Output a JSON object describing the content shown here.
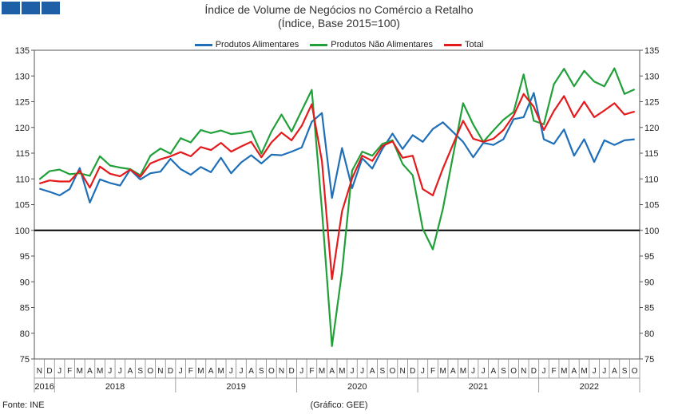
{
  "header": {
    "logo_icon": "ine-logo-blocks",
    "logo_color": "#1f5fa8"
  },
  "chart_data": {
    "type": "line",
    "title": "Índice de Volume de Negócios no Comércio a Retalho",
    "subtitle": "(Índice, Base 2015=100)",
    "ylim": [
      75,
      135
    ],
    "yticks": [
      75,
      80,
      85,
      90,
      95,
      100,
      105,
      110,
      115,
      120,
      125,
      130,
      135
    ],
    "reference_line": 100,
    "legend_position": "top-center",
    "x_month_labels": [
      "N",
      "D",
      "J",
      "F",
      "M",
      "A",
      "M",
      "J",
      "J",
      "A",
      "S",
      "O",
      "N",
      "D",
      "J",
      "F",
      "M",
      "A",
      "M",
      "J",
      "J",
      "A",
      "S",
      "O",
      "N",
      "D",
      "J",
      "F",
      "M",
      "A",
      "M",
      "J",
      "J",
      "A",
      "S",
      "O",
      "N",
      "D",
      "J",
      "F",
      "M",
      "A",
      "M",
      "J",
      "J",
      "A",
      "S",
      "O",
      "N",
      "D",
      "J",
      "F",
      "M",
      "A",
      "M",
      "J",
      "J",
      "A",
      "S",
      "O"
    ],
    "year_groups": [
      {
        "label": "2016",
        "start": 0,
        "end": 1
      },
      {
        "label": "2018",
        "start": 2,
        "end": 13
      },
      {
        "label": "2019",
        "start": 14,
        "end": 25
      },
      {
        "label": "2020",
        "start": 26,
        "end": 37
      },
      {
        "label": "2021",
        "start": 38,
        "end": 49
      },
      {
        "label": "2022",
        "start": 50,
        "end": 59
      }
    ],
    "series": [
      {
        "name": "Produtos Alimentares",
        "color": "#1f6fb8",
        "values": [
          108.1,
          107.5,
          106.8,
          108.0,
          112.1,
          105.4,
          109.9,
          109.2,
          108.7,
          111.8,
          109.9,
          111.1,
          111.4,
          113.9,
          111.9,
          110.8,
          112.3,
          111.3,
          114.1,
          111.1,
          113.2,
          114.6,
          113.0,
          114.7,
          114.6,
          115.3,
          116.1,
          121.1,
          122.8,
          106.3,
          116.0,
          108.2,
          114.0,
          112.0,
          115.8,
          118.8,
          115.8,
          118.5,
          117.2,
          119.7,
          121.0,
          119.1,
          117.2,
          114.2,
          117.0,
          116.6,
          117.7,
          121.6,
          122.0,
          126.7,
          117.7,
          116.8,
          119.6,
          114.5,
          117.7,
          113.3,
          117.5,
          116.6,
          117.5,
          117.7
        ]
      },
      {
        "name": "Produtos Não Alimentares",
        "color": "#21a03a",
        "values": [
          109.9,
          111.5,
          111.8,
          110.9,
          111.1,
          110.6,
          114.4,
          112.6,
          112.2,
          111.9,
          110.7,
          114.5,
          115.9,
          114.9,
          117.9,
          117.1,
          119.5,
          118.9,
          119.4,
          118.7,
          118.9,
          119.3,
          114.9,
          119.2,
          122.5,
          119.2,
          123.3,
          127.3,
          104.0,
          77.5,
          92.0,
          111.6,
          115.3,
          114.5,
          116.8,
          117.5,
          112.9,
          110.7,
          100.3,
          96.3,
          104.2,
          114.5,
          124.7,
          120.6,
          117.2,
          119.4,
          121.5,
          123.0,
          130.3,
          121.3,
          120.6,
          128.4,
          131.4,
          128.0,
          131.0,
          128.9,
          128.0,
          131.5,
          126.5,
          127.4
        ]
      },
      {
        "name": "Total",
        "color": "#e41a1c",
        "values": [
          109.1,
          109.7,
          109.5,
          109.5,
          111.6,
          108.3,
          112.4,
          111.0,
          110.5,
          111.8,
          110.4,
          113.0,
          113.8,
          114.4,
          115.2,
          114.4,
          116.2,
          115.6,
          117.0,
          115.3,
          116.3,
          117.2,
          114.2,
          117.1,
          119.0,
          117.5,
          120.3,
          124.5,
          113.5,
          90.5,
          103.7,
          110.1,
          114.5,
          113.5,
          116.4,
          117.3,
          114.1,
          114.5,
          108.0,
          106.8,
          112.0,
          116.7,
          121.3,
          117.8,
          117.2,
          117.8,
          119.5,
          122.3,
          126.5,
          124.0,
          119.5,
          123.2,
          126.1,
          122.0,
          125.0,
          122.0,
          123.3,
          124.7,
          122.5,
          123.1
        ]
      }
    ]
  },
  "footer": {
    "source": "Fonte: INE",
    "credit": "(Gráfico: GEE)"
  }
}
